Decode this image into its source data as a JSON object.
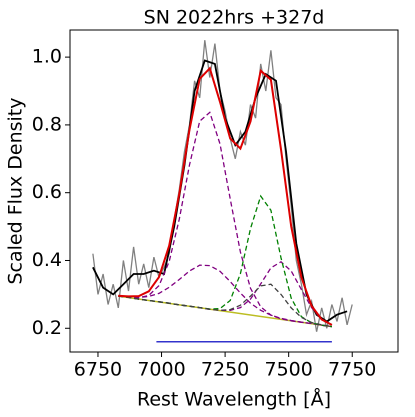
{
  "chart_data": {
    "type": "line",
    "title": "SN 2022hrs  +327d",
    "xlabel": "Rest Wavelength [Å]",
    "ylabel": "Scaled Flux Density",
    "xlim": [
      6640,
      7930
    ],
    "ylim": [
      0.13,
      1.08
    ],
    "xticks": [
      6750,
      7000,
      7250,
      7500,
      7750
    ],
    "yticks": [
      0.2,
      0.4,
      0.6,
      0.8,
      {
        "value": 1.0,
        "label": "1.0"
      }
    ],
    "grid": false,
    "series": [
      {
        "color": "#808080",
        "dashed": false,
        "width": 1.3,
        "x": [
          6730,
          6750,
          6770,
          6790,
          6810,
          6830,
          6850,
          6870,
          6890,
          6910,
          6930,
          6950,
          6970,
          6990,
          7010,
          7030,
          7050,
          7070,
          7090,
          7110,
          7130,
          7150,
          7170,
          7190,
          7210,
          7230,
          7250,
          7270,
          7290,
          7310,
          7330,
          7350,
          7370,
          7390,
          7410,
          7430,
          7450,
          7470,
          7490,
          7510,
          7530,
          7550,
          7570,
          7590,
          7610,
          7630,
          7650,
          7670,
          7690,
          7710,
          7730,
          7750
        ],
        "values": [
          0.42,
          0.3,
          0.36,
          0.27,
          0.33,
          0.26,
          0.4,
          0.31,
          0.44,
          0.33,
          0.39,
          0.32,
          0.41,
          0.35,
          0.38,
          0.42,
          0.52,
          0.61,
          0.72,
          0.8,
          0.93,
          0.88,
          1.05,
          0.94,
          1.04,
          0.9,
          0.84,
          0.76,
          0.7,
          0.78,
          0.74,
          0.86,
          0.82,
          0.98,
          0.9,
          1.02,
          0.88,
          0.86,
          0.7,
          0.56,
          0.4,
          0.33,
          0.24,
          0.28,
          0.19,
          0.26,
          0.2,
          0.27,
          0.22,
          0.29,
          0.21,
          0.27
        ]
      },
      {
        "color": "#000000",
        "dashed": false,
        "width": 1.8,
        "x": [
          6730,
          6770,
          6810,
          6850,
          6890,
          6930,
          6970,
          7010,
          7050,
          7090,
          7130,
          7170,
          7210,
          7250,
          7290,
          7330,
          7370,
          7410,
          7450,
          7490,
          7530,
          7570,
          7610,
          7650,
          7690,
          7730
        ],
        "values": [
          0.38,
          0.32,
          0.3,
          0.33,
          0.36,
          0.36,
          0.37,
          0.36,
          0.5,
          0.68,
          0.9,
          0.99,
          0.98,
          0.82,
          0.74,
          0.78,
          0.88,
          0.95,
          0.93,
          0.72,
          0.45,
          0.3,
          0.24,
          0.22,
          0.24,
          0.25
        ]
      },
      {
        "color": "#bcbd22",
        "dashed": false,
        "width": 1.5,
        "x": [
          6830,
          7670
        ],
        "values": [
          0.295,
          0.205
        ]
      },
      {
        "color": "#3333cc",
        "dashed": false,
        "width": 1.5,
        "x": [
          6980,
          7670
        ],
        "values": [
          0.16,
          0.16
        ]
      },
      {
        "color": "#800080",
        "dashed": true,
        "width": 1.3,
        "x": [
          6830,
          6870,
          6910,
          6950,
          6990,
          7030,
          7070,
          7110,
          7150,
          7190,
          7230,
          7270,
          7310,
          7350,
          7390,
          7430,
          7470,
          7510,
          7550,
          7590,
          7630,
          7670
        ],
        "values": [
          0.295,
          0.292,
          0.29,
          0.297,
          0.326,
          0.397,
          0.522,
          0.682,
          0.811,
          0.837,
          0.744,
          0.582,
          0.425,
          0.318,
          0.263,
          0.239,
          0.228,
          0.222,
          0.218,
          0.214,
          0.209,
          0.205
        ]
      },
      {
        "color": "#800080",
        "dashed": true,
        "width": 1.3,
        "x": [
          6830,
          6870,
          6910,
          6950,
          6990,
          7030,
          7070,
          7110,
          7150,
          7190,
          7230,
          7270,
          7310,
          7350,
          7390,
          7430,
          7470,
          7510,
          7550,
          7590,
          7630,
          7670
        ],
        "values": [
          0.296,
          0.293,
          0.291,
          0.294,
          0.303,
          0.321,
          0.344,
          0.369,
          0.386,
          0.385,
          0.368,
          0.338,
          0.304,
          0.274,
          0.253,
          0.239,
          0.229,
          0.223,
          0.218,
          0.214,
          0.209,
          0.205
        ]
      },
      {
        "color": "#800080",
        "dashed": true,
        "width": 1.3,
        "x": [
          6830,
          6870,
          6910,
          6950,
          6990,
          7030,
          7070,
          7110,
          7150,
          7190,
          7230,
          7270,
          7310,
          7350,
          7390,
          7430,
          7470,
          7510,
          7550,
          7590,
          7630,
          7670
        ],
        "values": [
          0.295,
          0.291,
          0.286,
          0.282,
          0.278,
          0.274,
          0.269,
          0.265,
          0.261,
          0.256,
          0.253,
          0.253,
          0.261,
          0.286,
          0.331,
          0.378,
          0.396,
          0.369,
          0.314,
          0.261,
          0.226,
          0.21
        ]
      },
      {
        "color": "#008000",
        "dashed": true,
        "width": 1.3,
        "x": [
          6830,
          6870,
          6910,
          6950,
          6990,
          7030,
          7070,
          7110,
          7150,
          7190,
          7230,
          7270,
          7310,
          7350,
          7390,
          7430,
          7470,
          7510,
          7550,
          7590,
          7630,
          7670
        ],
        "values": [
          0.295,
          0.291,
          0.286,
          0.282,
          0.278,
          0.274,
          0.269,
          0.265,
          0.261,
          0.257,
          0.258,
          0.282,
          0.361,
          0.494,
          0.59,
          0.548,
          0.408,
          0.289,
          0.234,
          0.216,
          0.209,
          0.205
        ]
      },
      {
        "color": "#404040",
        "dashed": true,
        "width": 1.3,
        "x": [
          6830,
          6870,
          6910,
          6950,
          6990,
          7030,
          7070,
          7110,
          7150,
          7190,
          7230,
          7270,
          7310,
          7350,
          7390,
          7430,
          7470,
          7510,
          7550,
          7590,
          7630,
          7670
        ],
        "values": [
          0.295,
          0.291,
          0.286,
          0.282,
          0.278,
          0.274,
          0.269,
          0.265,
          0.261,
          0.256,
          0.253,
          0.255,
          0.268,
          0.295,
          0.325,
          0.33,
          0.3,
          0.26,
          0.232,
          0.217,
          0.21,
          0.205
        ]
      },
      {
        "color": "#dd0000",
        "dashed": false,
        "width": 2,
        "x": [
          6830,
          6870,
          6910,
          6950,
          6990,
          7030,
          7070,
          7110,
          7150,
          7190,
          7230,
          7270,
          7310,
          7350,
          7390,
          7430,
          7470,
          7510,
          7550,
          7590,
          7630,
          7670
        ],
        "values": [
          0.296,
          0.294,
          0.295,
          0.309,
          0.351,
          0.444,
          0.597,
          0.786,
          0.936,
          0.967,
          0.868,
          0.76,
          0.73,
          0.81,
          0.96,
          0.933,
          0.728,
          0.501,
          0.35,
          0.266,
          0.226,
          0.21
        ]
      }
    ]
  }
}
